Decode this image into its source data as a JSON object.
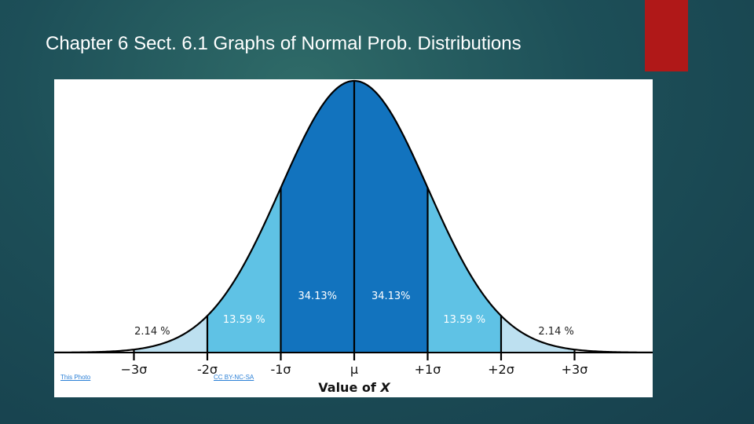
{
  "slide": {
    "title": "Chapter 6 Sect. 6.1 Graphs of Normal Prob. Distributions",
    "accent_color": "#b01818"
  },
  "figure": {
    "credit_photo": "This Photo",
    "credit_license": "CC BY-NC-SA"
  },
  "chart_data": {
    "type": "area",
    "title": "",
    "xlabel": "Value of X",
    "ylabel": "",
    "x_ticks": [
      "−3σ",
      "-2σ",
      "-1σ",
      "μ",
      "+1σ",
      "+2σ",
      "+3σ"
    ],
    "regions": [
      {
        "from": -4,
        "to": -3,
        "percent": null,
        "color": "#ffffff"
      },
      {
        "from": -3,
        "to": -2,
        "percent": "2.14 %",
        "color": "#bde0f0"
      },
      {
        "from": -2,
        "to": -1,
        "percent": "13.59 %",
        "color": "#5fc2e5"
      },
      {
        "from": -1,
        "to": 0,
        "percent": "34.13%",
        "color": "#1273be"
      },
      {
        "from": 0,
        "to": 1,
        "percent": "34.13%",
        "color": "#1273be"
      },
      {
        "from": 1,
        "to": 2,
        "percent": "13.59 %",
        "color": "#5fc2e5"
      },
      {
        "from": 2,
        "to": 3,
        "percent": "2.14 %",
        "color": "#bde0f0"
      },
      {
        "from": 3,
        "to": 4,
        "percent": null,
        "color": "#ffffff"
      }
    ],
    "xlim": [
      -4.2,
      4.2
    ],
    "grid": false,
    "legend": "none"
  }
}
